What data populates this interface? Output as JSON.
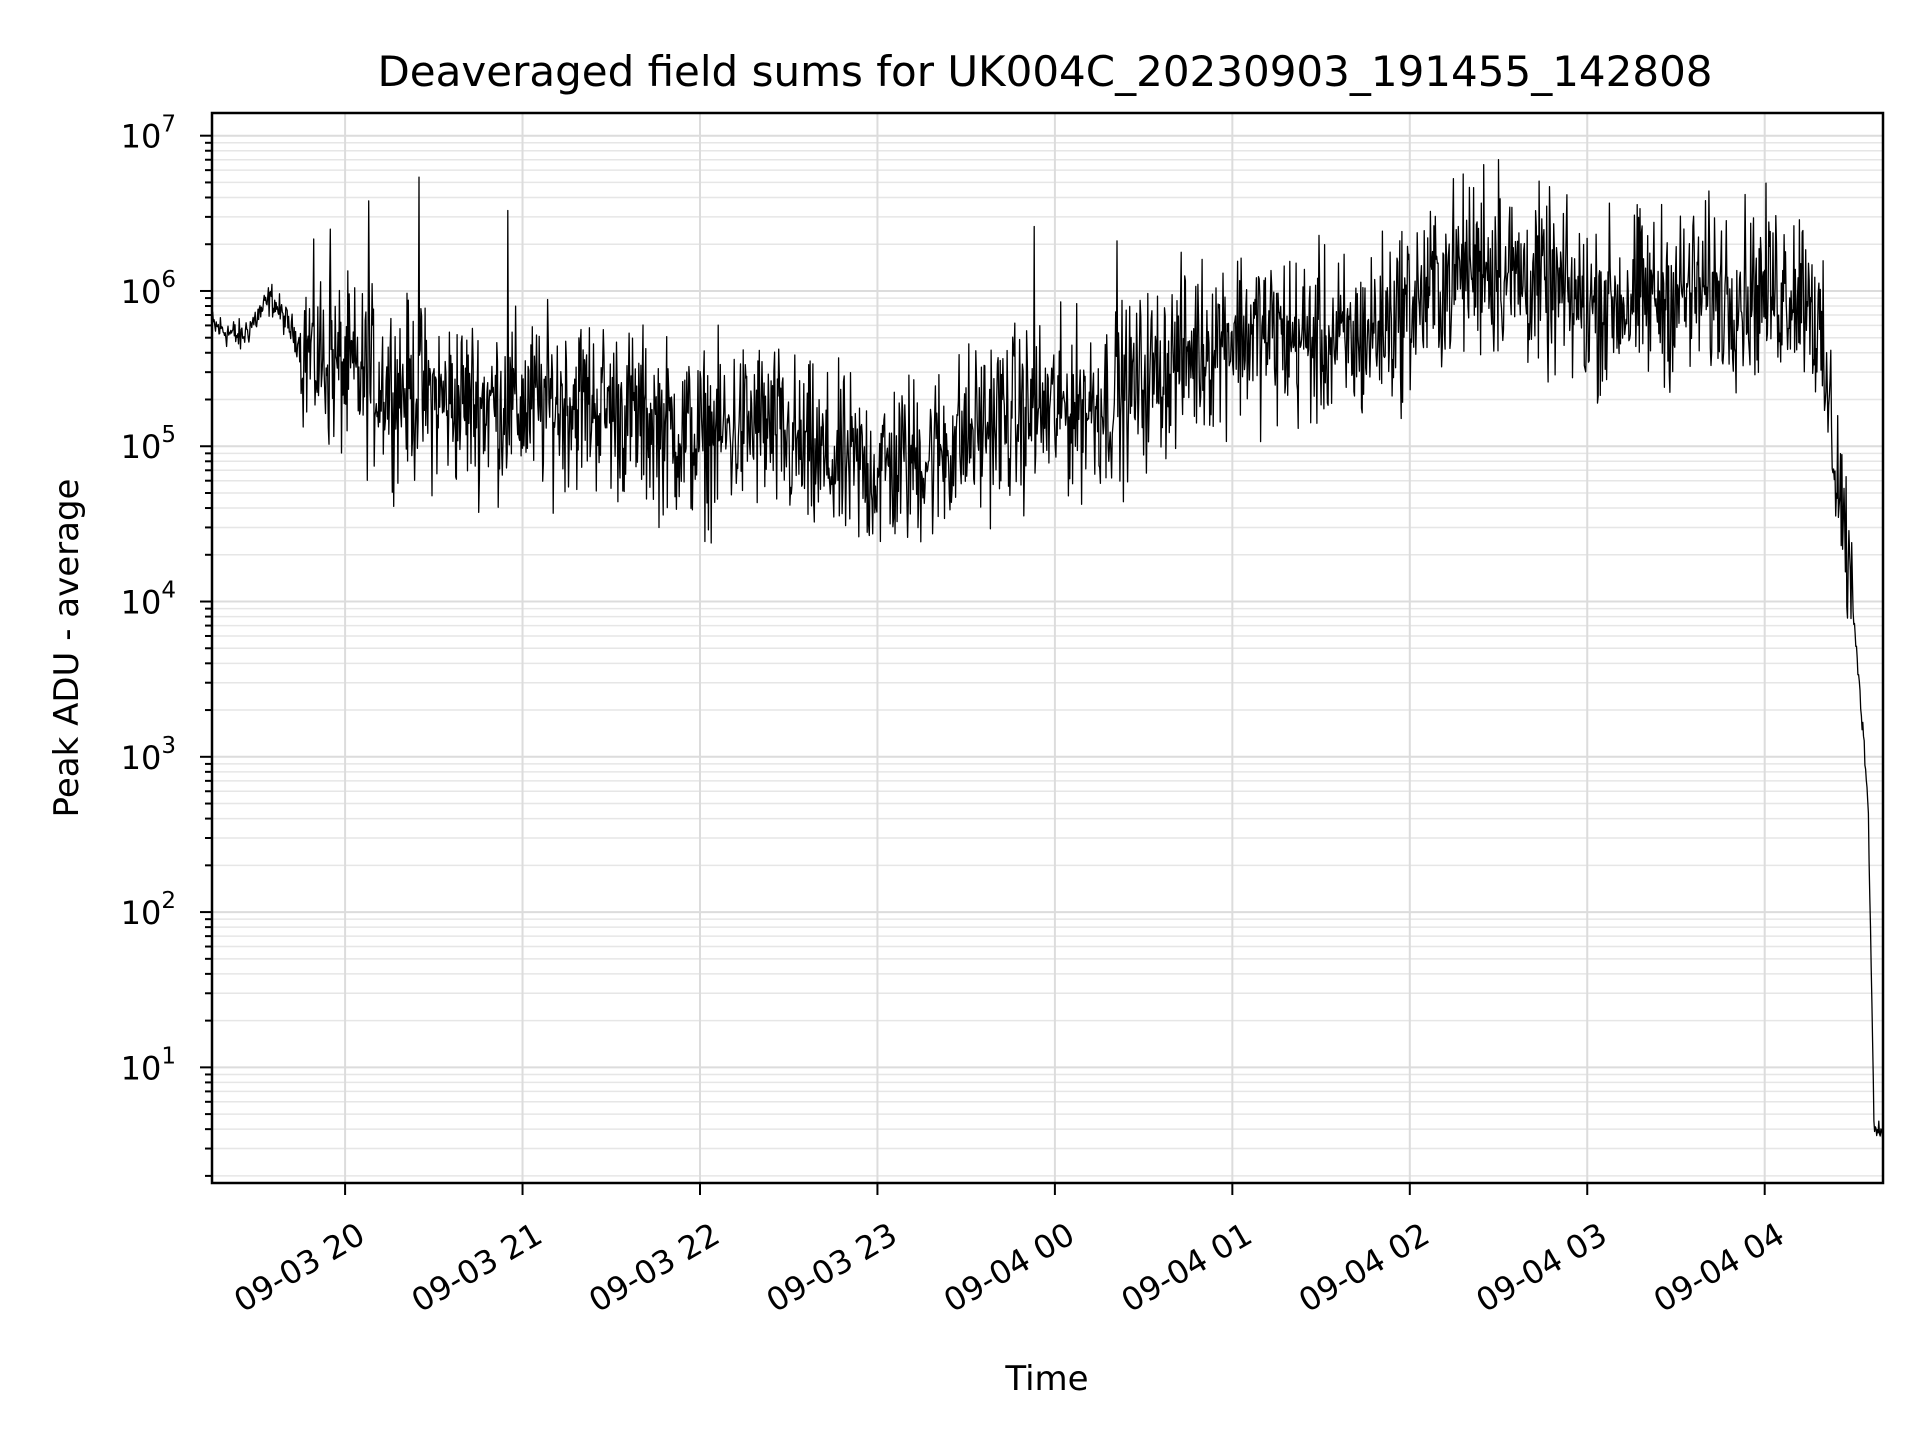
{
  "chart_data": {
    "type": "line",
    "title": "Deaveraged field sums for UK004C_20230903_191455_142808",
    "xlabel": "Time",
    "ylabel": "Peak ADU - average",
    "yscale": "log",
    "ylim": [
      1.8,
      14000000
    ],
    "xlim": [
      "2023-09-03 19:15",
      "2023-09-04 04:40"
    ],
    "grid": true,
    "line_color": "#000000",
    "x_tick_labels": [
      "09-03 20",
      "09-03 21",
      "09-03 22",
      "09-03 23",
      "09-04 00",
      "09-04 01",
      "09-04 02",
      "09-04 03",
      "09-04 04"
    ],
    "y_tick_labels": [
      {
        "base": "10",
        "exp": "1"
      },
      {
        "base": "10",
        "exp": "2"
      },
      {
        "base": "10",
        "exp": "3"
      },
      {
        "base": "10",
        "exp": "4"
      },
      {
        "base": "10",
        "exp": "5"
      },
      {
        "base": "10",
        "exp": "6"
      },
      {
        "base": "10",
        "exp": "7"
      }
    ],
    "series": [
      {
        "x": [
          "2023-09-03 19:15",
          "2023-09-03 19:25",
          "2023-09-03 19:35",
          "2023-09-03 19:45",
          "2023-09-03 20:00",
          "2023-09-03 20:15",
          "2023-09-03 20:30",
          "2023-09-03 20:45",
          "2023-09-03 21:00",
          "2023-09-03 21:20",
          "2023-09-03 21:40",
          "2023-09-03 22:00",
          "2023-09-03 22:20",
          "2023-09-03 22:40",
          "2023-09-03 23:00",
          "2023-09-03 23:20",
          "2023-09-03 23:40",
          "2023-09-04 00:00",
          "2023-09-04 00:20",
          "2023-09-04 00:40",
          "2023-09-04 01:00",
          "2023-09-04 01:20",
          "2023-09-04 01:40",
          "2023-09-04 02:00",
          "2023-09-04 02:20",
          "2023-09-04 02:40",
          "2023-09-04 03:00",
          "2023-09-04 03:20",
          "2023-09-04 03:40",
          "2023-09-04 04:00",
          "2023-09-04 04:15",
          "2023-09-04 04:20",
          "2023-09-04 04:25",
          "2023-09-04 04:28",
          "2023-09-04 04:32",
          "2023-09-04 04:35",
          "2023-09-04 04:37",
          "2023-09-04 04:40"
        ],
        "y": [
          600000,
          500000,
          900000,
          450000,
          300000,
          250000,
          200000,
          190000,
          180000,
          200000,
          150000,
          110000,
          140000,
          80000,
          70000,
          90000,
          150000,
          170000,
          200000,
          350000,
          550000,
          500000,
          450000,
          800000,
          1500000,
          1200000,
          800000,
          900000,
          1000000,
          1000000,
          1100000,
          300000,
          60000,
          20000,
          3000,
          500,
          4,
          4
        ]
      }
    ],
    "spikes": [
      {
        "x": "2023-09-03 19:55",
        "y": 2500000
      },
      {
        "x": "2023-09-03 20:08",
        "y": 3800000
      },
      {
        "x": "2023-09-03 20:25",
        "y": 5400000
      },
      {
        "x": "2023-09-03 20:55",
        "y": 3300000
      },
      {
        "x": "2023-09-03 23:53",
        "y": 2600000
      },
      {
        "x": "2023-09-04 00:21",
        "y": 2100000
      },
      {
        "x": "2023-09-04 02:25",
        "y": 6500000
      },
      {
        "x": "2023-09-04 02:30",
        "y": 7000000
      }
    ]
  }
}
